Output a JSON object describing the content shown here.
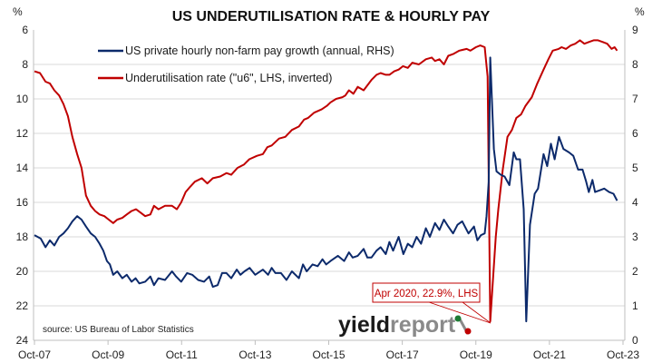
{
  "chart_data": {
    "type": "line",
    "title": "US UNDERUTILISATION RATE & HOURLY PAY",
    "ylabel_left": "%",
    "ylabel_right": "%",
    "ylim_left": [
      24,
      6
    ],
    "ylim_left_inverted": true,
    "ylim_right": [
      0,
      9
    ],
    "xlim": [
      2007.75,
      2023.75
    ],
    "grid": true,
    "legend_position": "top-left",
    "x_ticks": [
      {
        "label": "Oct-07",
        "x": 2007.75
      },
      {
        "label": "Oct-09",
        "x": 2009.75
      },
      {
        "label": "Oct-11",
        "x": 2011.75
      },
      {
        "label": "Oct-13",
        "x": 2013.75
      },
      {
        "label": "Oct-15",
        "x": 2015.75
      },
      {
        "label": "Oct-17",
        "x": 2017.75
      },
      {
        "label": "Oct-19",
        "x": 2019.75
      },
      {
        "label": "Oct-21",
        "x": 2021.75
      },
      {
        "label": "Oct-23",
        "x": 2023.75
      }
    ],
    "y_ticks_left": [
      "6",
      "8",
      "10",
      "12",
      "14",
      "16",
      "18",
      "20",
      "22",
      "24"
    ],
    "y_ticks_right": [
      "0",
      "1",
      "2",
      "3",
      "4",
      "5",
      "6",
      "7",
      "8",
      "9"
    ],
    "series": [
      {
        "name": "US private hourly non-farm pay growth (annual, RHS)",
        "axis": "right",
        "color": "#0c2a6b",
        "points": [
          [
            2007.75,
            3.05
          ],
          [
            2007.92,
            2.95
          ],
          [
            2008.05,
            2.7
          ],
          [
            2008.17,
            2.9
          ],
          [
            2008.29,
            2.75
          ],
          [
            2008.42,
            3.0
          ],
          [
            2008.54,
            3.1
          ],
          [
            2008.66,
            3.25
          ],
          [
            2008.78,
            3.45
          ],
          [
            2008.91,
            3.6
          ],
          [
            2009.03,
            3.5
          ],
          [
            2009.15,
            3.3
          ],
          [
            2009.28,
            3.1
          ],
          [
            2009.4,
            3.0
          ],
          [
            2009.52,
            2.8
          ],
          [
            2009.62,
            2.6
          ],
          [
            2009.72,
            2.3
          ],
          [
            2009.8,
            2.2
          ],
          [
            2009.89,
            1.9
          ],
          [
            2010.0,
            2.0
          ],
          [
            2010.14,
            1.8
          ],
          [
            2010.26,
            1.9
          ],
          [
            2010.39,
            1.7
          ],
          [
            2010.5,
            1.8
          ],
          [
            2010.6,
            1.65
          ],
          [
            2010.76,
            1.7
          ],
          [
            2010.9,
            1.85
          ],
          [
            2011.0,
            1.6
          ],
          [
            2011.12,
            1.8
          ],
          [
            2011.3,
            1.75
          ],
          [
            2011.49,
            2.0
          ],
          [
            2011.6,
            1.85
          ],
          [
            2011.74,
            1.7
          ],
          [
            2011.9,
            1.95
          ],
          [
            2012.04,
            1.9
          ],
          [
            2012.2,
            1.75
          ],
          [
            2012.36,
            1.7
          ],
          [
            2012.5,
            1.85
          ],
          [
            2012.6,
            1.55
          ],
          [
            2012.73,
            1.6
          ],
          [
            2012.85,
            1.95
          ],
          [
            2012.97,
            1.95
          ],
          [
            2013.1,
            1.8
          ],
          [
            2013.25,
            2.05
          ],
          [
            2013.35,
            1.9
          ],
          [
            2013.46,
            2.0
          ],
          [
            2013.6,
            2.1
          ],
          [
            2013.75,
            1.9
          ],
          [
            2013.96,
            2.05
          ],
          [
            2014.1,
            1.9
          ],
          [
            2014.2,
            2.1
          ],
          [
            2014.3,
            1.95
          ],
          [
            2014.45,
            1.95
          ],
          [
            2014.6,
            1.75
          ],
          [
            2014.75,
            2.0
          ],
          [
            2014.94,
            1.8
          ],
          [
            2015.05,
            2.2
          ],
          [
            2015.15,
            2.0
          ],
          [
            2015.31,
            2.2
          ],
          [
            2015.45,
            2.15
          ],
          [
            2015.58,
            2.35
          ],
          [
            2015.68,
            2.2
          ],
          [
            2015.8,
            2.3
          ],
          [
            2016.0,
            2.45
          ],
          [
            2016.17,
            2.3
          ],
          [
            2016.3,
            2.55
          ],
          [
            2016.4,
            2.4
          ],
          [
            2016.54,
            2.45
          ],
          [
            2016.7,
            2.65
          ],
          [
            2016.8,
            2.4
          ],
          [
            2016.91,
            2.4
          ],
          [
            2017.05,
            2.6
          ],
          [
            2017.16,
            2.7
          ],
          [
            2017.3,
            2.5
          ],
          [
            2017.4,
            2.85
          ],
          [
            2017.5,
            2.6
          ],
          [
            2017.65,
            3.0
          ],
          [
            2017.78,
            2.5
          ],
          [
            2017.9,
            2.8
          ],
          [
            2018.02,
            2.7
          ],
          [
            2018.14,
            3.0
          ],
          [
            2018.26,
            2.8
          ],
          [
            2018.39,
            3.25
          ],
          [
            2018.5,
            3.0
          ],
          [
            2018.64,
            3.4
          ],
          [
            2018.76,
            3.2
          ],
          [
            2018.88,
            3.5
          ],
          [
            2019.0,
            3.3
          ],
          [
            2019.13,
            3.1
          ],
          [
            2019.25,
            3.35
          ],
          [
            2019.38,
            3.45
          ],
          [
            2019.55,
            3.1
          ],
          [
            2019.7,
            3.3
          ],
          [
            2019.79,
            2.9
          ],
          [
            2019.89,
            3.05
          ],
          [
            2019.99,
            3.1
          ],
          [
            2020.04,
            3.6
          ],
          [
            2020.1,
            4.6
          ],
          [
            2020.14,
            8.2
          ],
          [
            2020.24,
            5.55
          ],
          [
            2020.31,
            4.9
          ],
          [
            2020.43,
            4.8
          ],
          [
            2020.53,
            4.75
          ],
          [
            2020.66,
            4.5
          ],
          [
            2020.78,
            5.45
          ],
          [
            2020.85,
            5.25
          ],
          [
            2020.95,
            5.25
          ],
          [
            2021.05,
            3.8
          ],
          [
            2021.12,
            0.55
          ],
          [
            2021.22,
            3.35
          ],
          [
            2021.35,
            4.25
          ],
          [
            2021.44,
            4.4
          ],
          [
            2021.59,
            5.4
          ],
          [
            2021.69,
            5.05
          ],
          [
            2021.79,
            5.7
          ],
          [
            2021.89,
            5.25
          ],
          [
            2022.01,
            5.9
          ],
          [
            2022.13,
            5.55
          ],
          [
            2022.28,
            5.45
          ],
          [
            2022.4,
            5.35
          ],
          [
            2022.53,
            4.95
          ],
          [
            2022.65,
            4.95
          ],
          [
            2022.75,
            4.6
          ],
          [
            2022.82,
            4.3
          ],
          [
            2022.92,
            4.65
          ],
          [
            2022.99,
            4.3
          ],
          [
            2023.12,
            4.35
          ],
          [
            2023.24,
            4.4
          ],
          [
            2023.37,
            4.3
          ],
          [
            2023.49,
            4.25
          ],
          [
            2023.59,
            4.05
          ]
        ]
      },
      {
        "name": "Underutilisation rate (\"u6\", LHS, inverted)",
        "axis": "left",
        "color": "#c00000",
        "points": [
          [
            2007.75,
            8.4
          ],
          [
            2007.9,
            8.5
          ],
          [
            2008.05,
            9.0
          ],
          [
            2008.17,
            9.1
          ],
          [
            2008.29,
            9.5
          ],
          [
            2008.42,
            9.8
          ],
          [
            2008.54,
            10.3
          ],
          [
            2008.66,
            11.0
          ],
          [
            2008.78,
            12.2
          ],
          [
            2008.91,
            13.2
          ],
          [
            2009.03,
            14.0
          ],
          [
            2009.15,
            15.6
          ],
          [
            2009.28,
            16.2
          ],
          [
            2009.4,
            16.5
          ],
          [
            2009.52,
            16.7
          ],
          [
            2009.65,
            16.8
          ],
          [
            2009.77,
            17.0
          ],
          [
            2009.89,
            17.2
          ],
          [
            2010.0,
            17.0
          ],
          [
            2010.14,
            16.9
          ],
          [
            2010.26,
            16.7
          ],
          [
            2010.39,
            16.5
          ],
          [
            2010.51,
            16.4
          ],
          [
            2010.64,
            16.6
          ],
          [
            2010.76,
            16.8
          ],
          [
            2010.9,
            16.7
          ],
          [
            2011.0,
            16.2
          ],
          [
            2011.12,
            16.4
          ],
          [
            2011.3,
            16.2
          ],
          [
            2011.49,
            16.2
          ],
          [
            2011.62,
            16.4
          ],
          [
            2011.74,
            16.0
          ],
          [
            2011.86,
            15.4
          ],
          [
            2011.98,
            15.1
          ],
          [
            2012.11,
            14.8
          ],
          [
            2012.3,
            14.6
          ],
          [
            2012.45,
            14.9
          ],
          [
            2012.6,
            14.6
          ],
          [
            2012.8,
            14.5
          ],
          [
            2012.97,
            14.3
          ],
          [
            2013.1,
            14.4
          ],
          [
            2013.27,
            14.0
          ],
          [
            2013.45,
            13.8
          ],
          [
            2013.59,
            13.5
          ],
          [
            2013.8,
            13.3
          ],
          [
            2013.96,
            13.2
          ],
          [
            2014.08,
            12.8
          ],
          [
            2014.2,
            12.7
          ],
          [
            2014.4,
            12.3
          ],
          [
            2014.57,
            12.2
          ],
          [
            2014.75,
            11.8
          ],
          [
            2014.94,
            11.6
          ],
          [
            2015.08,
            11.2
          ],
          [
            2015.19,
            11.1
          ],
          [
            2015.35,
            10.8
          ],
          [
            2015.56,
            10.6
          ],
          [
            2015.7,
            10.4
          ],
          [
            2015.8,
            10.2
          ],
          [
            2015.95,
            10.0
          ],
          [
            2016.12,
            9.9
          ],
          [
            2016.2,
            9.8
          ],
          [
            2016.3,
            9.5
          ],
          [
            2016.42,
            9.7
          ],
          [
            2016.54,
            9.3
          ],
          [
            2016.7,
            9.5
          ],
          [
            2016.91,
            8.9
          ],
          [
            2017.05,
            8.6
          ],
          [
            2017.16,
            8.5
          ],
          [
            2017.3,
            8.6
          ],
          [
            2017.4,
            8.6
          ],
          [
            2017.53,
            8.4
          ],
          [
            2017.65,
            8.3
          ],
          [
            2017.77,
            8.1
          ],
          [
            2017.9,
            8.2
          ],
          [
            2018.02,
            7.9
          ],
          [
            2018.2,
            8.0
          ],
          [
            2018.39,
            7.7
          ],
          [
            2018.55,
            7.6
          ],
          [
            2018.64,
            7.8
          ],
          [
            2018.76,
            7.7
          ],
          [
            2018.88,
            8.0
          ],
          [
            2019.0,
            7.5
          ],
          [
            2019.13,
            7.4
          ],
          [
            2019.3,
            7.2
          ],
          [
            2019.5,
            7.1
          ],
          [
            2019.6,
            7.2
          ],
          [
            2019.75,
            7.0
          ],
          [
            2019.87,
            6.9
          ],
          [
            2019.99,
            7.0
          ],
          [
            2020.07,
            8.7
          ],
          [
            2020.14,
            22.9
          ],
          [
            2020.29,
            18.0
          ],
          [
            2020.36,
            16.4
          ],
          [
            2020.48,
            14.1
          ],
          [
            2020.61,
            12.2
          ],
          [
            2020.73,
            11.8
          ],
          [
            2020.85,
            11.1
          ],
          [
            2020.98,
            10.9
          ],
          [
            2021.1,
            10.4
          ],
          [
            2021.27,
            9.9
          ],
          [
            2021.42,
            9.1
          ],
          [
            2021.59,
            8.3
          ],
          [
            2021.72,
            7.7
          ],
          [
            2021.84,
            7.2
          ],
          [
            2022.0,
            7.1
          ],
          [
            2022.08,
            7.0
          ],
          [
            2022.2,
            7.1
          ],
          [
            2022.33,
            6.9
          ],
          [
            2022.45,
            6.8
          ],
          [
            2022.58,
            6.6
          ],
          [
            2022.7,
            6.8
          ],
          [
            2022.82,
            6.7
          ],
          [
            2022.95,
            6.6
          ],
          [
            2023.07,
            6.6
          ],
          [
            2023.2,
            6.7
          ],
          [
            2023.32,
            6.8
          ],
          [
            2023.44,
            7.1
          ],
          [
            2023.52,
            7.0
          ],
          [
            2023.59,
            7.2
          ]
        ]
      }
    ],
    "annotation": {
      "text": "Apr 2020, 22.9%, LHS",
      "x": 2020.14,
      "y": 22.9,
      "axis": "left"
    },
    "source": "source: US Bureau of Labor Statistics"
  },
  "logo": {
    "text_a": "yield",
    "text_b": "report",
    "symbol": "%"
  },
  "colors": {
    "grid": "#d9d9d9",
    "axis": "#bfbfbf",
    "logo_dark": "#1a1a1a",
    "logo_grey": "#8a8a8a",
    "logo_green": "#1e7b34",
    "logo_red": "#c00000"
  }
}
